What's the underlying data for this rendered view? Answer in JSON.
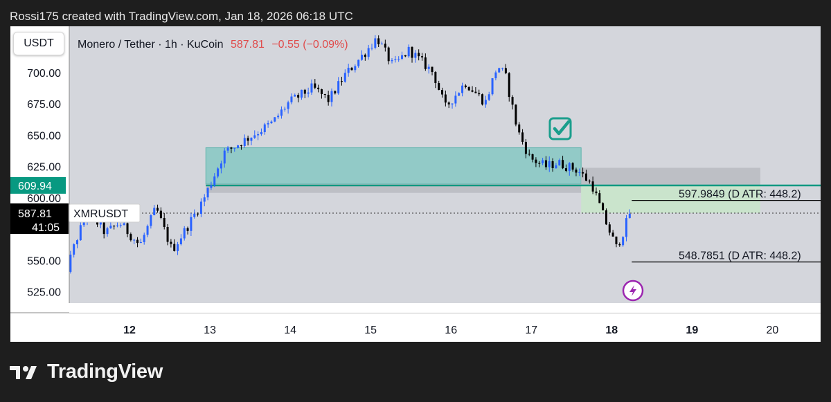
{
  "caption": "Rossi175 created with TradingView.com, Jan 18, 2026 06:18 UTC",
  "symbol_button": "USDT",
  "legend": {
    "instrument": "Monero / Tether · 1h · KuCoin",
    "price": "587.81",
    "change": "−0.55 (−0.09%)"
  },
  "price_scale": {
    "labels": [
      "700.00",
      "675.00",
      "650.00",
      "625.00",
      "600.00",
      "550.00",
      "525.00"
    ],
    "marker_level": "609.94",
    "current_price": "587.81",
    "current_symbol": "XMRUSDT",
    "countdown": "41:05"
  },
  "time_axis": {
    "labels": [
      "12",
      "13",
      "14",
      "15",
      "16",
      "17",
      "18",
      "19",
      "20"
    ],
    "bold": [
      "12",
      "18",
      "19"
    ]
  },
  "annotations": {
    "upper_level": "597.9849 (D ATR: 448.2)",
    "lower_level": "548.7851 (D ATR: 448.2)"
  },
  "colors": {
    "up": "#2962ff",
    "down": "#000000",
    "zone_fill": "#7cc6c0",
    "level_line": "#089981",
    "marker_bg": "#089981",
    "target_fill": "#c8e6c9",
    "grid_bg": "#d4d6dc",
    "price_label_bg": "#000000"
  },
  "icons": {
    "check": "check-box-icon",
    "flash": "lightning-icon",
    "brand": "tradingview-logo"
  },
  "footer": {
    "brand": "TradingView"
  },
  "chart_data": {
    "type": "candlestick",
    "title": "Monero / Tether · 1h · KuCoin",
    "x_unit": "day of January 2026",
    "y_range": [
      516,
      737
    ],
    "x_range": [
      11.25,
      20.6
    ],
    "zones": [
      {
        "kind": "supply-demand",
        "from": 12.95,
        "to": 17.62,
        "low": 611,
        "high": 640
      },
      {
        "kind": "gray",
        "from": 12.95,
        "to": 17.62,
        "low": 604,
        "high": 611
      },
      {
        "kind": "gray",
        "from": 17.62,
        "to": 19.85,
        "low": 609.94,
        "high": 624
      },
      {
        "kind": "target",
        "from": 17.62,
        "to": 19.85,
        "low": 588,
        "high": 609.94
      }
    ],
    "levels": [
      {
        "value": 609.94,
        "from": 12.95,
        "to": 20.6
      },
      {
        "value": 597.9849,
        "from": 18.25,
        "to": 20.6
      },
      {
        "value": 548.7851,
        "from": 18.25,
        "to": 20.6
      }
    ],
    "current_price": 587.81,
    "path": [
      [
        11.12,
        518
      ],
      [
        11.35,
        565
      ],
      [
        11.5,
        590
      ],
      [
        11.72,
        572
      ],
      [
        11.9,
        580
      ],
      [
        12.15,
        562
      ],
      [
        12.35,
        592
      ],
      [
        12.55,
        558
      ],
      [
        12.75,
        578
      ],
      [
        12.95,
        600
      ],
      [
        13.2,
        636
      ],
      [
        13.5,
        648
      ],
      [
        13.8,
        660
      ],
      [
        14.0,
        676
      ],
      [
        14.3,
        688
      ],
      [
        14.5,
        678
      ],
      [
        14.7,
        698
      ],
      [
        14.95,
        716
      ],
      [
        15.1,
        728
      ],
      [
        15.3,
        705
      ],
      [
        15.5,
        718
      ],
      [
        15.8,
        700
      ],
      [
        15.95,
        672
      ],
      [
        16.2,
        692
      ],
      [
        16.45,
        676
      ],
      [
        16.6,
        706
      ],
      [
        16.7,
        697
      ],
      [
        16.85,
        654
      ],
      [
        17.0,
        632
      ],
      [
        17.2,
        625
      ],
      [
        17.35,
        628
      ],
      [
        17.6,
        622
      ],
      [
        17.78,
        610
      ],
      [
        17.92,
        585
      ],
      [
        18.08,
        560
      ],
      [
        18.18,
        575
      ],
      [
        18.24,
        588
      ]
    ]
  }
}
